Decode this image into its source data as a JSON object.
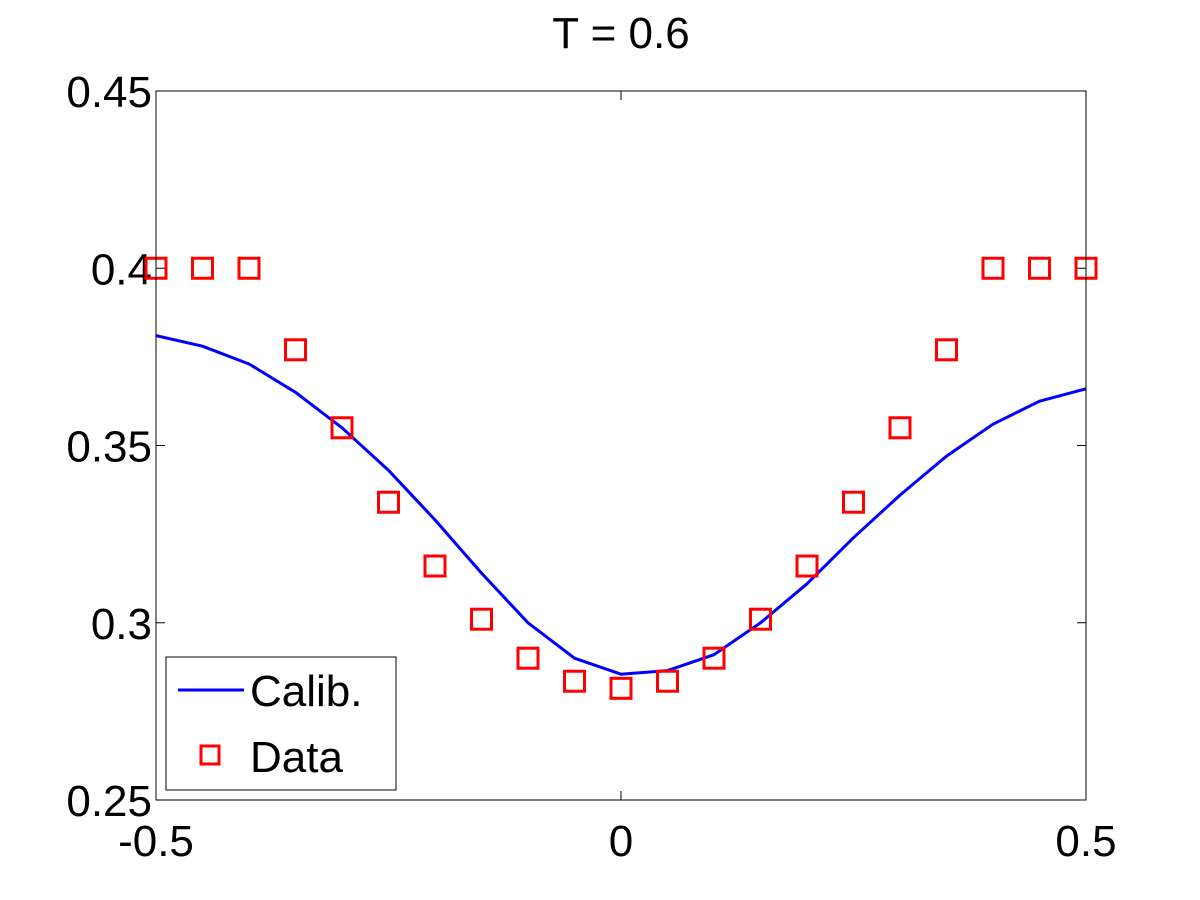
{
  "chart_data": {
    "type": "line",
    "title": "T = 0.6",
    "xlabel": "",
    "ylabel": "",
    "xlim": [
      -0.5,
      0.5
    ],
    "ylim": [
      0.25,
      0.45
    ],
    "xticks": [
      -0.5,
      0,
      0.5
    ],
    "xtick_labels": [
      "-0.5",
      "0",
      "0.5"
    ],
    "yticks": [
      0.25,
      0.3,
      0.35,
      0.4,
      0.45
    ],
    "ytick_labels": [
      "0.25",
      "0.3",
      "0.35",
      "0.4",
      "0.45"
    ],
    "grid": false,
    "legend_position": "bottom-left",
    "series": [
      {
        "name": "Calib.",
        "style": "line",
        "color": "#0000ff",
        "x": [
          -0.5,
          -0.45,
          -0.4,
          -0.35,
          -0.3,
          -0.25,
          -0.2,
          -0.15,
          -0.1,
          -0.05,
          0,
          0.05,
          0.1,
          0.15,
          0.2,
          0.25,
          0.3,
          0.35,
          0.4,
          0.45,
          0.5
        ],
        "y": [
          0.381,
          0.378,
          0.373,
          0.365,
          0.355,
          0.343,
          0.329,
          0.314,
          0.3,
          0.29,
          0.2855,
          0.2865,
          0.291,
          0.3,
          0.311,
          0.324,
          0.336,
          0.347,
          0.356,
          0.3625,
          0.366
        ]
      },
      {
        "name": "Data",
        "style": "markers",
        "marker": "square",
        "color": "#ff0000",
        "x": [
          -0.5,
          -0.45,
          -0.4,
          -0.35,
          -0.3,
          -0.25,
          -0.2,
          -0.15,
          -0.1,
          -0.05,
          0,
          0.05,
          0.1,
          0.15,
          0.2,
          0.25,
          0.3,
          0.35,
          0.4,
          0.45,
          0.5
        ],
        "y": [
          0.4,
          0.4,
          0.4,
          0.377,
          0.355,
          0.334,
          0.316,
          0.301,
          0.29,
          0.2835,
          0.2815,
          0.2835,
          0.29,
          0.301,
          0.316,
          0.334,
          0.355,
          0.377,
          0.4,
          0.4,
          0.4
        ]
      }
    ]
  }
}
